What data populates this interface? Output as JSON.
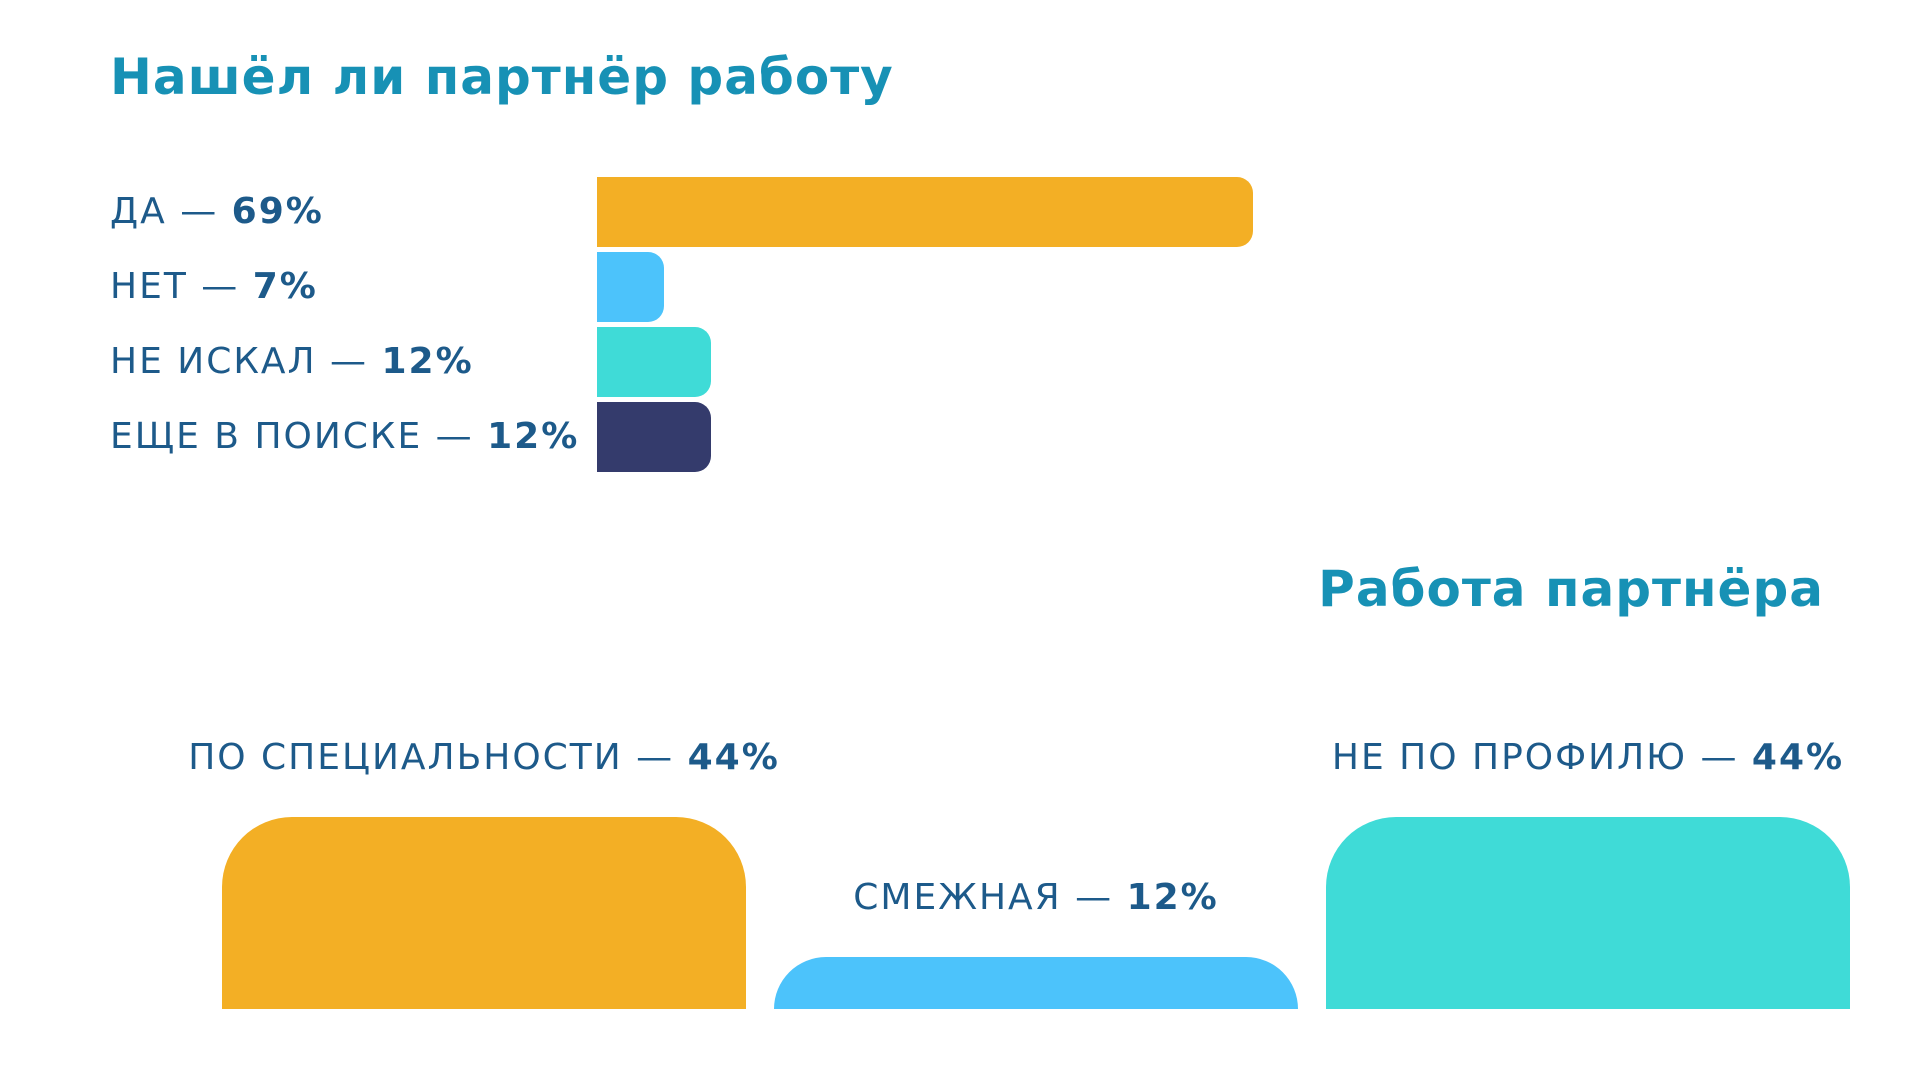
{
  "colors": {
    "title": "#1791b5",
    "label": "#1d5a8a"
  },
  "chart_data": [
    {
      "type": "bar",
      "orientation": "horizontal",
      "title": "Нашёл ли партнёр работу",
      "xlim": [
        0,
        100
      ],
      "categories": [
        {
          "name": "ДА",
          "pct_text": "69%",
          "value": 69,
          "color": "#f3af25"
        },
        {
          "name": "НЕТ",
          "pct_text": "7%",
          "value": 7,
          "color": "#4cc3fb"
        },
        {
          "name": "НЕ ИСКАЛ",
          "pct_text": "12%",
          "value": 12,
          "color": "#3fdbd7"
        },
        {
          "name": "ЕЩЕ В ПОИСКЕ",
          "pct_text": "12%",
          "value": 12,
          "color": "#343b6c"
        }
      ]
    },
    {
      "type": "bar",
      "orientation": "vertical",
      "title": "Работа партнёра",
      "ylim": [
        0,
        44
      ],
      "categories": [
        {
          "name": "ПО СПЕЦИАЛЬНОСТИ",
          "pct_text": "44%",
          "value": 44,
          "color": "#f3af25"
        },
        {
          "name": "СМЕЖНАЯ",
          "pct_text": "12%",
          "value": 12,
          "color": "#4cc3fb"
        },
        {
          "name": "НЕ ПО ПРОФИЛЮ",
          "pct_text": "44%",
          "value": 44,
          "color": "#3fdbd7"
        }
      ]
    }
  ]
}
